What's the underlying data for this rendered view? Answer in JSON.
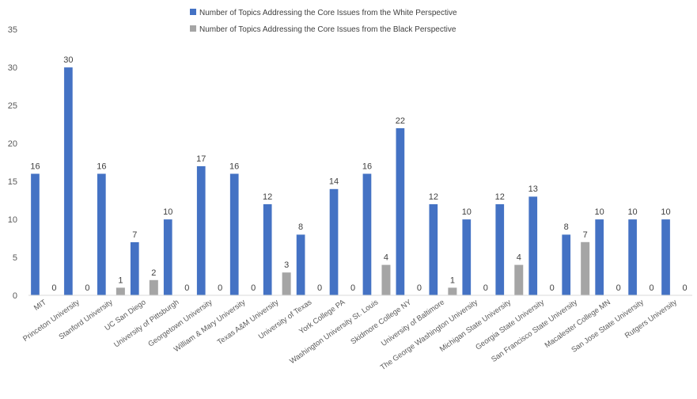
{
  "chart_data": {
    "type": "bar",
    "categories": [
      "MIT",
      "Princeton University",
      "Stanford University",
      "UC San Diego",
      "University of Pittsburgh",
      "Georgetown University",
      "William & Mary University",
      "Texas A&M University",
      "University of Texas",
      "York College PA",
      "Washington University St. Louis",
      "Skidmore College NY",
      "University of Baltimore",
      "The George Washington University",
      "Michigan State University",
      "Georgia State University",
      "San Francisco State University",
      "Macalester College MN",
      "San Jose State University",
      "Rutgers University"
    ],
    "series": [
      {
        "name": "Number of Topics Addressing the Core Issues from the White Perspective",
        "color": "#4472c4",
        "values": [
          16,
          30,
          16,
          7,
          10,
          17,
          16,
          12,
          8,
          14,
          16,
          22,
          12,
          10,
          12,
          13,
          8,
          10,
          10,
          10
        ]
      },
      {
        "name": "Number of Topics Addressing the Core Issues from the Black Perspective",
        "color": "#a5a5a5",
        "values": [
          0,
          0,
          1,
          2,
          0,
          0,
          0,
          3,
          0,
          0,
          4,
          0,
          1,
          0,
          4,
          0,
          7,
          0,
          0,
          0
        ]
      }
    ],
    "ylim": [
      0,
      35
    ],
    "yticks": [
      0,
      5,
      10,
      15,
      20,
      25,
      30,
      35
    ],
    "grid": false,
    "legend_position": "top"
  }
}
